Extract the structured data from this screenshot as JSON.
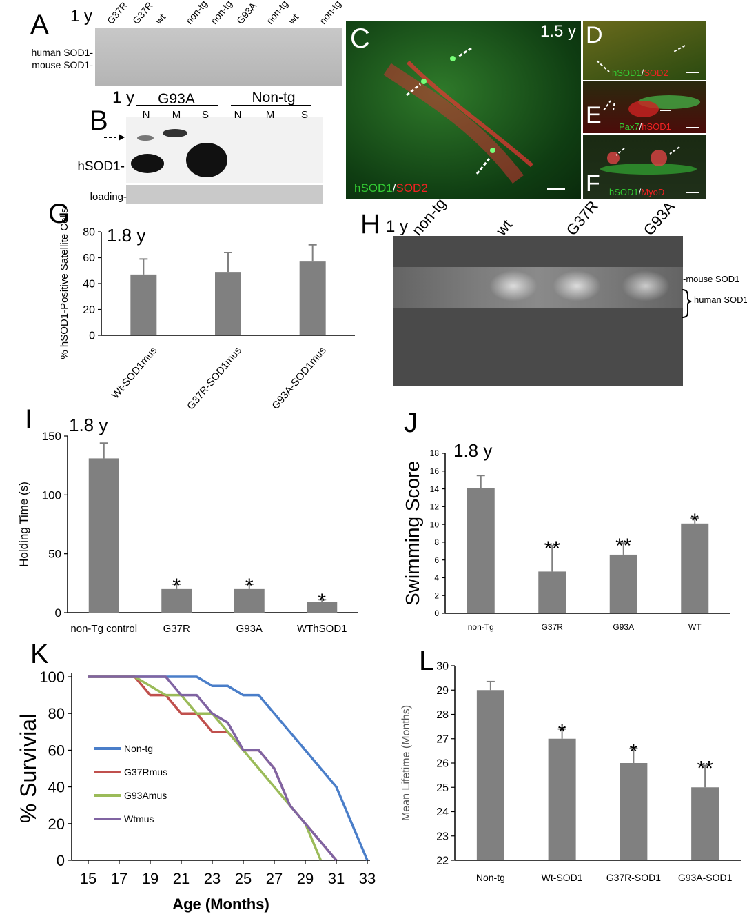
{
  "panels": {
    "A": {
      "label": "A",
      "age": "1 y",
      "lanes": [
        "G37R",
        "G37R",
        "wt",
        "non-tg",
        "non-tg",
        "G93A",
        "non-tg",
        "wt",
        "non-tg"
      ],
      "band_labels": [
        "human SOD1-",
        "mouse SOD1-"
      ]
    },
    "B": {
      "label": "B",
      "age": "1 y",
      "groups": [
        "G93A",
        "Non-tg"
      ],
      "lanes": [
        "N",
        "M",
        "S",
        "N",
        "M",
        "S"
      ],
      "band_labels": [
        "hSOD1-",
        "loading-"
      ]
    },
    "C": {
      "label": "C",
      "age": "1.5 y",
      "stain_green": "hSOD1",
      "stain_red": "SOD2"
    },
    "D": {
      "label": "D",
      "stain_green": "hSOD1",
      "stain_red": "SOD2"
    },
    "E": {
      "label": "E",
      "stain_green": "Pax7",
      "stain_red": "hSOD1"
    },
    "F": {
      "label": "F",
      "stain_green": "hSOD1",
      "stain_red": "MyoD"
    },
    "G": {
      "label": "G",
      "age": "1.8 y"
    },
    "H": {
      "label": "H",
      "age": "1 y",
      "lanes": [
        "non-tg",
        "wt",
        "G37R",
        "G93A"
      ],
      "band_labels": [
        "-mouse SOD1",
        "human SOD1"
      ]
    },
    "I": {
      "label": "I",
      "age": "1.8 y"
    },
    "J": {
      "label": "J",
      "age": "1.8 y"
    },
    "K": {
      "label": "K"
    },
    "L": {
      "label": "L"
    }
  },
  "chart_data": [
    {
      "id": "G",
      "type": "bar",
      "categories": [
        "Wt-SOD1mus",
        "G37R-SOD1mus",
        "G93A-SOD1mus"
      ],
      "values": [
        47,
        49,
        57
      ],
      "errors": [
        12,
        15,
        13
      ],
      "ylabel": "% hSOD1-Positive Satellite Cells",
      "ylim": [
        0,
        80
      ],
      "yticks": [
        0,
        20,
        40,
        60,
        80
      ],
      "bar_color": "#808080"
    },
    {
      "id": "I",
      "type": "bar",
      "categories": [
        "non-Tg control",
        "G37R",
        "G93A",
        "WThSOD1"
      ],
      "values": [
        131,
        20,
        20,
        9
      ],
      "errors": [
        13,
        4,
        4,
        2
      ],
      "significance": [
        "",
        "*",
        "*",
        "*"
      ],
      "ylabel": "Holding Time (s)",
      "ylim": [
        0,
        150
      ],
      "yticks": [
        0,
        50,
        100,
        150
      ],
      "bar_color": "#808080"
    },
    {
      "id": "J",
      "type": "bar",
      "categories": [
        "non-Tg",
        "G37R",
        "G93A",
        "WT"
      ],
      "values": [
        14.1,
        4.7,
        6.6,
        10.1
      ],
      "errors": [
        1.4,
        2.9,
        1.3,
        0.6
      ],
      "significance": [
        "",
        "**",
        "**",
        "*"
      ],
      "ylabel": "Swimming Score",
      "ylim": [
        0,
        18
      ],
      "yticks": [
        0,
        2,
        4,
        6,
        8,
        10,
        12,
        14,
        16,
        18
      ],
      "bar_color": "#808080"
    },
    {
      "id": "K",
      "type": "line",
      "xlabel": "Age (Months)",
      "ylabel": "% Survivial",
      "xlim": [
        15,
        33
      ],
      "ylim": [
        0,
        100
      ],
      "xticks": [
        15,
        17,
        19,
        21,
        23,
        25,
        27,
        29,
        31,
        33
      ],
      "yticks": [
        0,
        20,
        40,
        60,
        80,
        100
      ],
      "legend_position": "left",
      "series": [
        {
          "name": "Non-tg",
          "color": "#4a7ec9",
          "x": [
            15,
            22,
            23,
            24,
            25,
            26,
            27,
            28,
            29,
            30,
            31,
            33
          ],
          "y": [
            100,
            100,
            95,
            95,
            90,
            90,
            80,
            70,
            60,
            50,
            40,
            0
          ]
        },
        {
          "name": "G37Rmus",
          "color": "#c0504d",
          "x": [
            15,
            18,
            19,
            20,
            21,
            22,
            23,
            24,
            25,
            26,
            27,
            28,
            29,
            30,
            31
          ],
          "y": [
            100,
            100,
            90,
            90,
            80,
            80,
            70,
            70,
            60,
            60,
            50,
            30,
            20,
            10,
            0
          ]
        },
        {
          "name": "G93Amus",
          "color": "#9bbb59",
          "x": [
            15,
            18,
            19,
            20,
            21,
            22,
            23,
            24,
            25,
            26,
            27,
            28,
            29,
            30
          ],
          "y": [
            100,
            100,
            95,
            90,
            90,
            80,
            80,
            70,
            60,
            50,
            40,
            30,
            20,
            0
          ]
        },
        {
          "name": "Wtmus",
          "color": "#8064a2",
          "x": [
            15,
            20,
            21,
            22,
            23,
            24,
            25,
            26,
            27,
            28,
            29,
            30,
            31
          ],
          "y": [
            100,
            100,
            90,
            90,
            80,
            75,
            60,
            60,
            50,
            30,
            20,
            10,
            0
          ]
        }
      ]
    },
    {
      "id": "L",
      "type": "bar",
      "categories": [
        "Non-tg",
        "Wt-SOD1",
        "G37R-SOD1",
        "G93A-SOD1"
      ],
      "values": [
        29,
        27,
        26,
        25
      ],
      "errors": [
        0.35,
        0.4,
        0.6,
        0.9
      ],
      "significance": [
        "",
        "*",
        "*",
        "**"
      ],
      "ylabel": "Mean Lifetime (Months)",
      "ylim": [
        22,
        30
      ],
      "yticks": [
        22,
        23,
        24,
        25,
        26,
        27,
        28,
        29,
        30
      ],
      "bar_color": "#808080"
    }
  ]
}
